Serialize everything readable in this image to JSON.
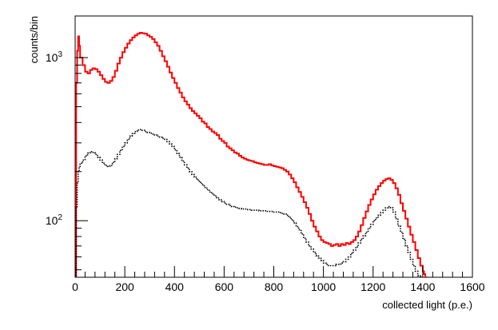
{
  "chart_data": {
    "type": "line",
    "title": "",
    "xlabel": "collected light (p.e.)",
    "ylabel": "counts/bin",
    "x_scale": "linear",
    "y_scale": "log",
    "xlim": [
      0,
      1600
    ],
    "ylim": [
      45,
      1800
    ],
    "x_ticks": [
      {
        "value": 0,
        "label": "0"
      },
      {
        "value": 200,
        "label": "200"
      },
      {
        "value": 400,
        "label": "400"
      },
      {
        "value": 600,
        "label": "600"
      },
      {
        "value": 800,
        "label": "800"
      },
      {
        "value": 1000,
        "label": "1000"
      },
      {
        "value": 1200,
        "label": "1200"
      },
      {
        "value": 1400,
        "label": "1400"
      },
      {
        "value": 1600,
        "label": "1600"
      }
    ],
    "y_major_ticks": [
      {
        "value": 100,
        "base": "10",
        "exp": "2"
      },
      {
        "value": 1000,
        "base": "10",
        "exp": "3"
      }
    ],
    "x_minor_step": 40,
    "y_minor_values": [
      50,
      60,
      70,
      80,
      90,
      200,
      300,
      400,
      500,
      600,
      700,
      800,
      900
    ],
    "grid": false,
    "legend": "none",
    "series": [
      {
        "style": "solid",
        "color": "#ff0000",
        "points": [
          [
            0,
            5
          ],
          [
            4,
            700
          ],
          [
            8,
            1100
          ],
          [
            12,
            1350
          ],
          [
            16,
            1180
          ],
          [
            20,
            1000
          ],
          [
            30,
            900
          ],
          [
            40,
            820
          ],
          [
            50,
            800
          ],
          [
            60,
            840
          ],
          [
            70,
            860
          ],
          [
            80,
            850
          ],
          [
            90,
            820
          ],
          [
            100,
            780
          ],
          [
            110,
            740
          ],
          [
            120,
            710
          ],
          [
            130,
            700
          ],
          [
            140,
            720
          ],
          [
            150,
            760
          ],
          [
            160,
            830
          ],
          [
            170,
            920
          ],
          [
            180,
            1000
          ],
          [
            190,
            1080
          ],
          [
            200,
            1150
          ],
          [
            210,
            1220
          ],
          [
            220,
            1280
          ],
          [
            230,
            1330
          ],
          [
            240,
            1370
          ],
          [
            250,
            1400
          ],
          [
            260,
            1420
          ],
          [
            270,
            1410
          ],
          [
            280,
            1400
          ],
          [
            290,
            1370
          ],
          [
            300,
            1340
          ],
          [
            310,
            1300
          ],
          [
            320,
            1240
          ],
          [
            330,
            1180
          ],
          [
            340,
            1100
          ],
          [
            350,
            1020
          ],
          [
            360,
            950
          ],
          [
            370,
            880
          ],
          [
            380,
            810
          ],
          [
            390,
            750
          ],
          [
            400,
            700
          ],
          [
            410,
            650
          ],
          [
            420,
            610
          ],
          [
            430,
            570
          ],
          [
            440,
            540
          ],
          [
            450,
            515
          ],
          [
            460,
            490
          ],
          [
            470,
            470
          ],
          [
            480,
            455
          ],
          [
            490,
            440
          ],
          [
            500,
            425
          ],
          [
            510,
            405
          ],
          [
            520,
            395
          ],
          [
            530,
            375
          ],
          [
            540,
            365
          ],
          [
            550,
            352
          ],
          [
            560,
            345
          ],
          [
            570,
            335
          ],
          [
            580,
            318
          ],
          [
            590,
            308
          ],
          [
            600,
            300
          ],
          [
            610,
            285
          ],
          [
            620,
            278
          ],
          [
            630,
            270
          ],
          [
            640,
            262
          ],
          [
            650,
            258
          ],
          [
            660,
            250
          ],
          [
            670,
            244
          ],
          [
            680,
            240
          ],
          [
            690,
            236
          ],
          [
            700,
            234
          ],
          [
            710,
            232
          ],
          [
            720,
            228
          ],
          [
            730,
            226
          ],
          [
            740,
            224
          ],
          [
            750,
            222
          ],
          [
            760,
            220
          ],
          [
            770,
            220
          ],
          [
            780,
            222
          ],
          [
            790,
            218
          ],
          [
            800,
            216
          ],
          [
            810,
            214
          ],
          [
            820,
            212
          ],
          [
            830,
            210
          ],
          [
            840,
            205
          ],
          [
            850,
            200
          ],
          [
            860,
            192
          ],
          [
            870,
            182
          ],
          [
            880,
            172
          ],
          [
            890,
            160
          ],
          [
            900,
            150
          ],
          [
            910,
            140
          ],
          [
            920,
            130
          ],
          [
            930,
            120
          ],
          [
            940,
            110
          ],
          [
            950,
            100
          ],
          [
            960,
            92
          ],
          [
            970,
            86
          ],
          [
            980,
            80
          ],
          [
            990,
            76
          ],
          [
            1000,
            74
          ],
          [
            1010,
            73
          ],
          [
            1020,
            72
          ],
          [
            1030,
            70
          ],
          [
            1040,
            71
          ],
          [
            1050,
            72
          ],
          [
            1060,
            70
          ],
          [
            1070,
            72
          ],
          [
            1080,
            71
          ],
          [
            1090,
            73
          ],
          [
            1100,
            72
          ],
          [
            1110,
            74
          ],
          [
            1120,
            76
          ],
          [
            1130,
            80
          ],
          [
            1140,
            86
          ],
          [
            1150,
            94
          ],
          [
            1160,
            104
          ],
          [
            1170,
            114
          ],
          [
            1180,
            125
          ],
          [
            1190,
            135
          ],
          [
            1200,
            145
          ],
          [
            1210,
            155
          ],
          [
            1220,
            163
          ],
          [
            1230,
            170
          ],
          [
            1240,
            176
          ],
          [
            1250,
            180
          ],
          [
            1260,
            182
          ],
          [
            1270,
            178
          ],
          [
            1280,
            170
          ],
          [
            1290,
            158
          ],
          [
            1300,
            144
          ],
          [
            1310,
            128
          ],
          [
            1320,
            115
          ],
          [
            1330,
            103
          ],
          [
            1340,
            92
          ],
          [
            1350,
            82
          ],
          [
            1360,
            74
          ],
          [
            1370,
            66
          ],
          [
            1380,
            59
          ],
          [
            1390,
            53
          ],
          [
            1400,
            49
          ],
          [
            1405,
            47
          ],
          [
            1410,
            45
          ]
        ]
      },
      {
        "style": "dotted",
        "color": "#000000",
        "points": [
          [
            0,
            5
          ],
          [
            4,
            120
          ],
          [
            8,
            170
          ],
          [
            12,
            200
          ],
          [
            16,
            215
          ],
          [
            20,
            225
          ],
          [
            30,
            235
          ],
          [
            40,
            250
          ],
          [
            50,
            260
          ],
          [
            60,
            265
          ],
          [
            70,
            262
          ],
          [
            80,
            255
          ],
          [
            90,
            245
          ],
          [
            100,
            235
          ],
          [
            110,
            225
          ],
          [
            120,
            218
          ],
          [
            130,
            215
          ],
          [
            140,
            218
          ],
          [
            150,
            228
          ],
          [
            160,
            240
          ],
          [
            170,
            255
          ],
          [
            180,
            270
          ],
          [
            190,
            285
          ],
          [
            200,
            300
          ],
          [
            210,
            315
          ],
          [
            220,
            330
          ],
          [
            230,
            342
          ],
          [
            240,
            352
          ],
          [
            250,
            360
          ],
          [
            260,
            362
          ],
          [
            270,
            358
          ],
          [
            280,
            352
          ],
          [
            290,
            348
          ],
          [
            300,
            344
          ],
          [
            310,
            340
          ],
          [
            320,
            335
          ],
          [
            330,
            330
          ],
          [
            340,
            325
          ],
          [
            350,
            320
          ],
          [
            360,
            315
          ],
          [
            370,
            305
          ],
          [
            380,
            295
          ],
          [
            390,
            285
          ],
          [
            400,
            272
          ],
          [
            410,
            258
          ],
          [
            420,
            245
          ],
          [
            430,
            232
          ],
          [
            440,
            220
          ],
          [
            450,
            210
          ],
          [
            460,
            200
          ],
          [
            470,
            192
          ],
          [
            480,
            185
          ],
          [
            490,
            178
          ],
          [
            500,
            172
          ],
          [
            510,
            166
          ],
          [
            520,
            160
          ],
          [
            530,
            155
          ],
          [
            540,
            150
          ],
          [
            550,
            146
          ],
          [
            560,
            142
          ],
          [
            570,
            138
          ],
          [
            580,
            134
          ],
          [
            590,
            131
          ],
          [
            600,
            128
          ],
          [
            610,
            126
          ],
          [
            620,
            124
          ],
          [
            630,
            122
          ],
          [
            640,
            121
          ],
          [
            650,
            120
          ],
          [
            660,
            119
          ],
          [
            670,
            118
          ],
          [
            680,
            118
          ],
          [
            690,
            117
          ],
          [
            700,
            117
          ],
          [
            710,
            116
          ],
          [
            720,
            116
          ],
          [
            730,
            116
          ],
          [
            740,
            115
          ],
          [
            750,
            115
          ],
          [
            760,
            115
          ],
          [
            770,
            114
          ],
          [
            780,
            114
          ],
          [
            790,
            114
          ],
          [
            800,
            113
          ],
          [
            810,
            113
          ],
          [
            820,
            112
          ],
          [
            830,
            111
          ],
          [
            840,
            110
          ],
          [
            850,
            108
          ],
          [
            860,
            105
          ],
          [
            870,
            101
          ],
          [
            880,
            97
          ],
          [
            890,
            92
          ],
          [
            900,
            88
          ],
          [
            910,
            83
          ],
          [
            920,
            78
          ],
          [
            930,
            74
          ],
          [
            940,
            70
          ],
          [
            950,
            67
          ],
          [
            960,
            64
          ],
          [
            970,
            61
          ],
          [
            980,
            59
          ],
          [
            990,
            57
          ],
          [
            1000,
            55
          ],
          [
            1010,
            54
          ],
          [
            1020,
            53
          ],
          [
            1030,
            53
          ],
          [
            1040,
            53
          ],
          [
            1050,
            54
          ],
          [
            1060,
            54
          ],
          [
            1070,
            55
          ],
          [
            1080,
            56
          ],
          [
            1090,
            58
          ],
          [
            1100,
            60
          ],
          [
            1110,
            63
          ],
          [
            1120,
            66
          ],
          [
            1130,
            69
          ],
          [
            1140,
            73
          ],
          [
            1150,
            77
          ],
          [
            1160,
            81
          ],
          [
            1170,
            85
          ],
          [
            1180,
            90
          ],
          [
            1190,
            95
          ],
          [
            1200,
            100
          ],
          [
            1210,
            104
          ],
          [
            1220,
            108
          ],
          [
            1230,
            112
          ],
          [
            1240,
            116
          ],
          [
            1250,
            120
          ],
          [
            1260,
            122
          ],
          [
            1270,
            120
          ],
          [
            1280,
            113
          ],
          [
            1290,
            103
          ],
          [
            1300,
            93
          ],
          [
            1310,
            85
          ],
          [
            1320,
            77
          ],
          [
            1330,
            70
          ],
          [
            1340,
            64
          ],
          [
            1350,
            58
          ],
          [
            1360,
            53
          ],
          [
            1370,
            49
          ],
          [
            1380,
            46
          ],
          [
            1390,
            45
          ]
        ]
      }
    ]
  }
}
